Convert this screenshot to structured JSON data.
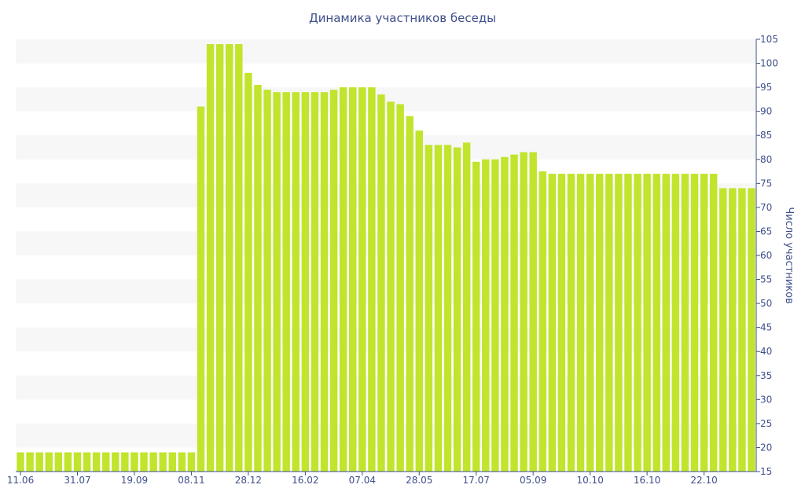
{
  "chart_data": {
    "type": "bar",
    "title": "Динамика участников беседы",
    "xlabel": "",
    "ylabel": "Число участников",
    "ylim": [
      15,
      105
    ],
    "yticks": [
      15,
      20,
      25,
      30,
      35,
      40,
      45,
      50,
      55,
      60,
      65,
      70,
      75,
      80,
      85,
      90,
      95,
      100,
      105
    ],
    "y_axis_side": "right",
    "grid": "alternating horizontal bands",
    "bar_color": "#c1e42c",
    "band_color": "#f7f7f7",
    "text_color": "#3e4f8a",
    "xtick_labels": [
      {
        "index": 0,
        "label": "11.06"
      },
      {
        "index": 6,
        "label": "31.07"
      },
      {
        "index": 12,
        "label": "19.09"
      },
      {
        "index": 18,
        "label": "08.11"
      },
      {
        "index": 24,
        "label": "28.12"
      },
      {
        "index": 30,
        "label": "16.02"
      },
      {
        "index": 36,
        "label": "07.04"
      },
      {
        "index": 42,
        "label": "28.05"
      },
      {
        "index": 48,
        "label": "17.07"
      },
      {
        "index": 54,
        "label": "05.09"
      },
      {
        "index": 60,
        "label": "10.10"
      },
      {
        "index": 66,
        "label": "16.10"
      },
      {
        "index": 72,
        "label": "22.10"
      }
    ],
    "values": [
      19,
      19,
      19,
      19,
      19,
      19,
      19,
      19,
      19,
      19,
      19,
      19,
      19,
      19,
      19,
      19,
      19,
      19,
      19,
      91,
      104,
      104,
      104,
      104,
      98,
      95.5,
      94.5,
      94,
      94,
      94,
      94,
      94,
      94,
      94.5,
      95,
      95,
      95,
      95,
      93.5,
      92,
      91.5,
      89,
      86,
      83,
      83,
      83,
      82.5,
      83.5,
      79.5,
      80,
      80,
      80.5,
      81,
      81.5,
      81.5,
      77.5,
      77,
      77,
      77,
      77,
      77,
      77,
      77,
      77,
      77,
      77,
      77,
      77,
      77,
      77,
      77,
      77,
      77,
      77,
      74,
      74,
      74,
      74
    ]
  }
}
